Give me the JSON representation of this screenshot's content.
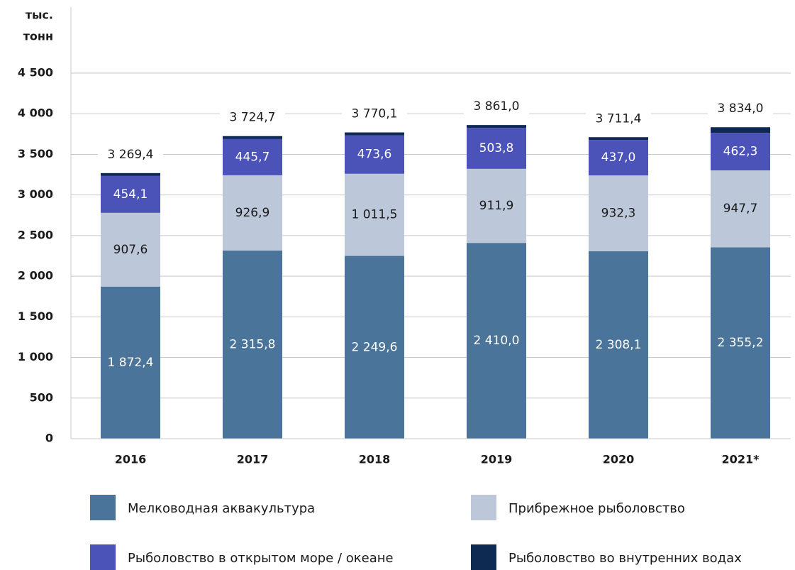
{
  "chart_data": {
    "type": "stacked_bar",
    "y_label": [
      "тыс.",
      "тонн"
    ],
    "categories": [
      "2016",
      "2017",
      "2018",
      "2019",
      "2020",
      "2021*"
    ],
    "series": [
      {
        "name": "Мелководная аквакультура",
        "color": "#4a7499",
        "label_color": "#ffffff",
        "values": [
          1872.4,
          2315.8,
          2249.6,
          2410.0,
          2308.1,
          2355.2
        ],
        "value_labels": [
          "1 872,4",
          "2 315,8",
          "2 249,6",
          "2 410,0",
          "2 308,1",
          "2 355,2"
        ]
      },
      {
        "name": "Прибрежное рыболовство",
        "color": "#bcc8d9",
        "label_color": "#1a1a1a",
        "values": [
          907.6,
          926.9,
          1011.5,
          911.9,
          932.3,
          947.7
        ],
        "value_labels": [
          "907,6",
          "926,9",
          "1 011,5",
          "911,9",
          "932,3",
          "947,7"
        ]
      },
      {
        "name": "Рыболовство в открытом море / океане",
        "color": "#4b52b8",
        "label_color": "#ffffff",
        "values": [
          454.1,
          445.7,
          473.6,
          503.8,
          437.0,
          462.3
        ],
        "value_labels": [
          "454,1",
          "445,7",
          "473,6",
          "503,8",
          "437,0",
          "462,3"
        ]
      },
      {
        "name": "Рыболовство во внутренних водах",
        "color": "#0f2a52",
        "values": [
          35.3,
          36.3,
          35.4,
          35.3,
          34.0,
          68.8
        ]
      }
    ],
    "totals": [
      3269.4,
      3724.7,
      3770.1,
      3861.0,
      3711.4,
      3834.0
    ],
    "total_labels": [
      "3 269,4",
      "3 724,7",
      "3 770,1",
      "3 861,0",
      "3 711,4",
      "3 834,0"
    ],
    "ylim": [
      0,
      4500
    ],
    "yticks": [
      0,
      {
        "value": 500,
        "label": "500"
      },
      {
        "value": 1000,
        "label": "1 000"
      },
      {
        "value": 1500,
        "label": "1 500"
      },
      {
        "value": 2000,
        "label": "2 000"
      },
      {
        "value": 2500,
        "label": "2 500"
      },
      {
        "value": 3000,
        "label": "3 000"
      },
      {
        "value": 3500,
        "label": "3 500"
      },
      {
        "value": 4000,
        "label": "4 000"
      },
      {
        "value": 4500,
        "label": "4 500"
      }
    ],
    "grid": true
  }
}
